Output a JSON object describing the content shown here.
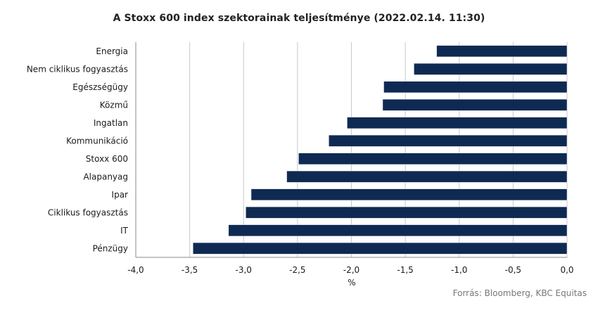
{
  "chart_data": {
    "type": "bar",
    "orientation": "horizontal",
    "title": "A Stoxx 600 index szektorainak teljesítménye  (2022.02.14.  11:30)",
    "xlabel": "%",
    "ylabel": "",
    "categories": [
      "Energia",
      "Nem ciklikus fogyasztás",
      "Egészségügy",
      "Közmű",
      "Ingatlan",
      "Kommunikáció",
      "Stoxx 600",
      "Alapanyag",
      "Ipar",
      "Ciklikus fogyasztás",
      "IT",
      "Pénzügy"
    ],
    "values": [
      -1.21,
      -1.42,
      -1.7,
      -1.71,
      -2.04,
      -2.21,
      -2.49,
      -2.6,
      -2.93,
      -2.98,
      -3.14,
      -3.47
    ],
    "xlim": [
      -4.0,
      0.0
    ],
    "xticks": [
      -4.0,
      -3.5,
      -3.0,
      -2.5,
      -2.0,
      -1.5,
      -1.0,
      -0.5,
      0.0
    ],
    "xtick_labels": [
      "-4,0",
      "-3,5",
      "-3,0",
      "-2,5",
      "-2,0",
      "-1,5",
      "-1,0",
      "-0,5",
      "0,0"
    ],
    "grid": "vertical",
    "bar_color": "#0f2a52",
    "grid_color": "#c8c8c8",
    "source": "Forrás: Bloomberg,  KBC Equitas"
  }
}
